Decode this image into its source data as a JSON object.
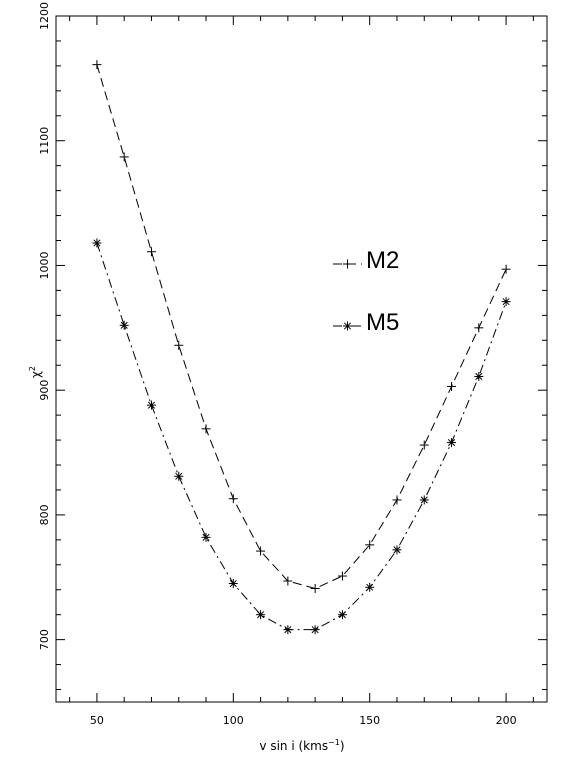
{
  "chart_data": {
    "type": "line",
    "title": "",
    "xlabel": "v sin i (kms",
    "xlabel_sup": "−1",
    "xlabel_close": ")",
    "ylabel": "χ",
    "ylabel_sup": "2",
    "xlim": [
      35,
      215
    ],
    "ylim": [
      650,
      1200
    ],
    "xticks": [
      50,
      100,
      150,
      200
    ],
    "yticks": [
      700,
      800,
      900,
      1000,
      1100,
      1200
    ],
    "grid": false,
    "legend_position": "right-middle",
    "series": [
      {
        "name": "M2",
        "marker": "+",
        "line_style": "dashed",
        "x": [
          50,
          60,
          70,
          80,
          90,
          100,
          110,
          120,
          130,
          140,
          150,
          160,
          170,
          180,
          190,
          200
        ],
        "y": [
          1161,
          1087,
          1011,
          936,
          869,
          813,
          771,
          747,
          741,
          751,
          776,
          812,
          856,
          903,
          950,
          997
        ]
      },
      {
        "name": "M5",
        "marker": "*",
        "line_style": "dash-dot",
        "x": [
          50,
          60,
          70,
          80,
          90,
          100,
          110,
          120,
          130,
          140,
          150,
          160,
          170,
          180,
          190,
          200
        ],
        "y": [
          1018,
          952,
          888,
          831,
          782,
          745,
          720,
          708,
          708,
          720,
          742,
          772,
          812,
          858,
          911,
          971
        ]
      }
    ]
  }
}
